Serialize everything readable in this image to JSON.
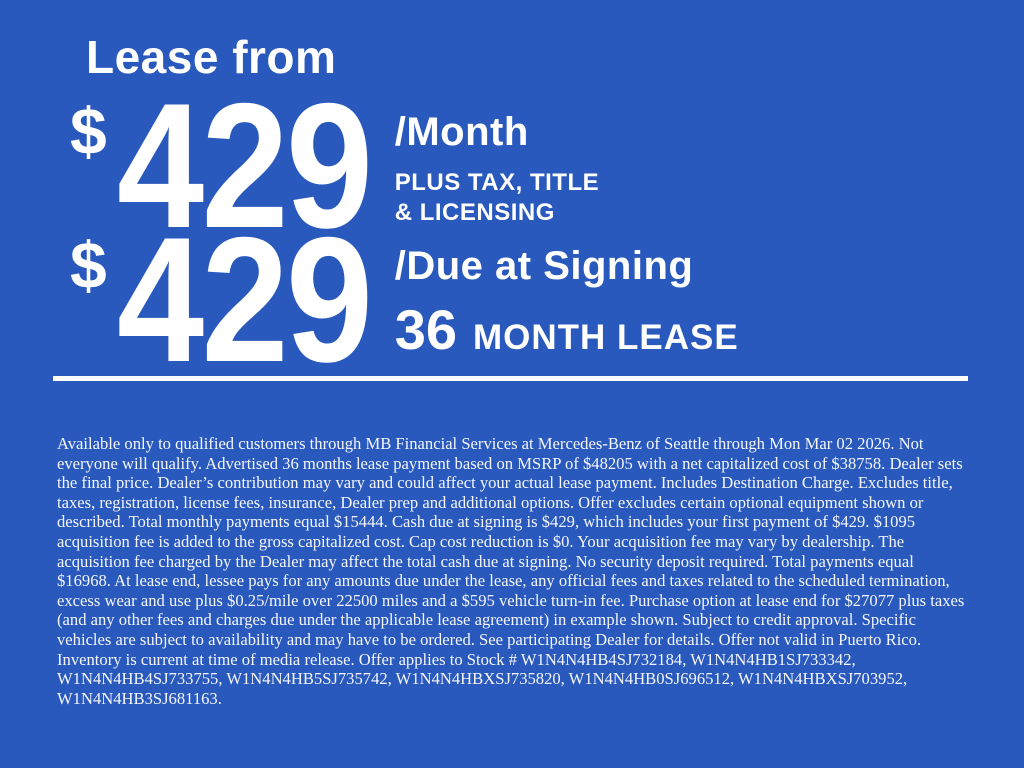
{
  "colors": {
    "background": "#2959BD",
    "text": "#FFFFFF"
  },
  "header": {
    "title": "Lease from"
  },
  "monthly_price": {
    "currency": "$",
    "amount": "429",
    "per_label": "/Month",
    "note_line1": "PLUS TAX, TITLE",
    "note_line2": "& LICENSING"
  },
  "due_at_signing": {
    "currency": "$",
    "amount": "429",
    "per_label": "/Due at Signing",
    "term_number": "36",
    "term_label": "MONTH LEASE"
  },
  "disclaimer": "Available only to qualified customers through MB Financial Services at Mercedes-Benz of Seattle through Mon Mar 02 2026. Not everyone will qualify. Advertised 36 months lease payment based on MSRP of $48205 with a net capitalized cost of $38758. Dealer sets the final price. Dealer’s contribution may vary and could affect your actual lease payment. Includes Destination Charge. Excludes title, taxes, registration, license fees, insurance, Dealer prep and additional options. Offer excludes certain optional equipment shown or described. Total monthly payments equal $15444. Cash due at signing is $429, which includes your first payment of $429. $1095 acquisition fee is added to the gross capitalized cost. Cap cost reduction is $0. Your acquisition fee may vary by dealership. The acquisition fee charged by the Dealer may affect the total cash due at signing. No security deposit required. Total payments equal $16968. At lease end, lessee pays for any amounts due under the lease, any official fees and taxes related to the scheduled termination, excess wear and use plus $0.25/mile over 22500 miles and a $595 vehicle turn-in fee. Purchase option at lease end for $27077 plus taxes (and any other fees and charges due under the applicable lease agreement) in example shown. Subject to credit approval. Specific vehicles are subject to availability and may have to be ordered. See participating Dealer for details. Offer not valid in Puerto Rico. Inventory is current at time of media release. Offer applies to Stock # W1N4N4HB4SJ732184, W1N4N4HB1SJ733342, W1N4N4HB4SJ733755, W1N4N4HB5SJ735742, W1N4N4HBXSJ735820, W1N4N4HB0SJ696512, W1N4N4HBXSJ703952, W1N4N4HB3SJ681163."
}
